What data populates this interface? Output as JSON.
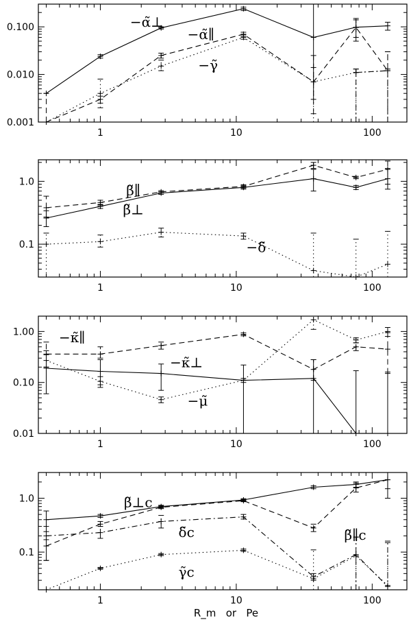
{
  "xlabel": "R_m   or   Pe",
  "chart_data": [
    {
      "type": "line",
      "xscale": "log",
      "yscale": "log",
      "xlim": [
        0.35,
        180
      ],
      "ylim": [
        0.001,
        0.3
      ],
      "xticks": [
        {
          "v": 1,
          "label": "1"
        },
        {
          "v": 10,
          "label": "10"
        },
        {
          "v": 100,
          "label": "100"
        }
      ],
      "yticks": [
        {
          "v": 0.001,
          "label": "0.001"
        },
        {
          "v": 0.01,
          "label": "0.010"
        },
        {
          "v": 0.1,
          "label": "0.100"
        }
      ],
      "series": [
        {
          "name": "−α̃⊥",
          "style": "solid",
          "points": [
            [
              0.4,
              0.004,
              0,
              0
            ],
            [
              1,
              0.024,
              0.022,
              0.026
            ],
            [
              2.8,
              0.095,
              0.09,
              0.1
            ],
            [
              11.3,
              0.24,
              0.22,
              0.26
            ],
            [
              37,
              0.06,
              0.003,
              0.3
            ],
            [
              76,
              0.098,
              0.06,
              0.14
            ],
            [
              130,
              0.105,
              0.085,
              0.125
            ]
          ]
        },
        {
          "name": "−α̃∥",
          "style": "dashed",
          "points": [
            [
              0.4,
              0.0009,
              0.0009,
              0.004
            ],
            [
              1,
              0.003,
              0.0025,
              0.0035
            ],
            [
              2.8,
              0.025,
              0.022,
              0.028
            ],
            [
              11.3,
              0.07,
              0.063,
              0.077
            ],
            [
              37,
              0.007,
              0.0015,
              0.025
            ],
            [
              76,
              0.097,
              0.05,
              0.15
            ],
            [
              130,
              0.012,
              0.0009,
              0.03
            ]
          ]
        },
        {
          "name": "−γ̃",
          "style": "dotted",
          "points": [
            [
              0.4,
              0.0009,
              0,
              0
            ],
            [
              1,
              0.004,
              0.002,
              0.008
            ],
            [
              2.8,
              0.015,
              0.012,
              0.02
            ],
            [
              11.3,
              0.06,
              0.055,
              0.068
            ],
            [
              37,
              0.007,
              0.0009,
              0.014
            ],
            [
              76,
              0.011,
              0.0009,
              0.013
            ],
            [
              130,
              0.012,
              0.0009,
              0.013
            ]
          ]
        },
        {
          "name": "",
          "style": "dashdot",
          "points": [
            [
              76,
              0.011,
              0.0009,
              0.013
            ],
            [
              130,
              0.012,
              0.0009,
              0.03
            ]
          ]
        }
      ],
      "annotations": [
        {
          "label": "−α̃⊥",
          "x": 2.2,
          "y": 0.1
        },
        {
          "label": "−α̃∥",
          "x": 5.5,
          "y": 0.055
        },
        {
          "label": "−γ̃",
          "x": 6.2,
          "y": 0.0125
        }
      ]
    },
    {
      "type": "line",
      "xscale": "log",
      "yscale": "log",
      "xlim": [
        0.35,
        180
      ],
      "ylim": [
        0.03,
        2.2
      ],
      "xticks": [
        {
          "v": 1,
          "label": "1"
        },
        {
          "v": 10,
          "label": "10"
        },
        {
          "v": 100,
          "label": "100"
        }
      ],
      "yticks": [
        {
          "v": 0.1,
          "label": "0.1"
        },
        {
          "v": 1,
          "label": "1.0"
        }
      ],
      "series": [
        {
          "name": "β̃⊥",
          "style": "solid",
          "points": [
            [
              0.4,
              0.26,
              0.19,
              0.34
            ],
            [
              1,
              0.4,
              0.37,
              0.43
            ],
            [
              2.8,
              0.65,
              0.62,
              0.68
            ],
            [
              11.3,
              0.8,
              0.75,
              0.85
            ],
            [
              37,
              1.1,
              0.7,
              1.55
            ],
            [
              76,
              0.8,
              0.74,
              0.86
            ],
            [
              130,
              1.1,
              0.75,
              1.6
            ]
          ]
        },
        {
          "name": "β̃∥",
          "style": "dashed",
          "points": [
            [
              0.4,
              0.38,
              0.27,
              0.58
            ],
            [
              1,
              0.46,
              0.42,
              0.5
            ],
            [
              2.8,
              0.68,
              0.65,
              0.71
            ],
            [
              11.3,
              0.83,
              0.78,
              0.88
            ],
            [
              37,
              1.8,
              1.6,
              2.0
            ],
            [
              76,
              1.15,
              1.1,
              1.2
            ],
            [
              130,
              1.55,
              0.9,
              2.1
            ]
          ]
        },
        {
          "name": "−δ̃",
          "style": "dotted",
          "points": [
            [
              0.4,
              0.1,
              0.03,
              0.15
            ],
            [
              1,
              0.11,
              0.09,
              0.14
            ],
            [
              2.8,
              0.155,
              0.13,
              0.18
            ],
            [
              11.3,
              0.135,
              0.12,
              0.15
            ],
            [
              37,
              0.038,
              0.03,
              0.15
            ],
            [
              76,
              0.03,
              0.03,
              0.12
            ],
            [
              130,
              0.048,
              0.03,
              0.16
            ]
          ]
        }
      ],
      "annotations": [
        {
          "label": "β̃∥",
          "x": 1.75,
          "y": 0.6
        },
        {
          "label": "β̃⊥",
          "x": 1.75,
          "y": 0.3
        },
        {
          "label": "−δ̃",
          "x": 14,
          "y": 0.075
        }
      ]
    },
    {
      "type": "line",
      "xscale": "log",
      "yscale": "log",
      "xlim": [
        0.35,
        180
      ],
      "ylim": [
        0.01,
        2.0
      ],
      "xticks": [
        {
          "v": 1,
          "label": "1"
        },
        {
          "v": 10,
          "label": "10"
        },
        {
          "v": 100,
          "label": "100"
        }
      ],
      "yticks": [
        {
          "v": 0.01,
          "label": "0.01"
        },
        {
          "v": 0.1,
          "label": "0.10"
        },
        {
          "v": 1,
          "label": "1.00"
        }
      ],
      "series": [
        {
          "name": "−κ̃⊥",
          "style": "solid",
          "points": [
            [
              0.4,
              0.19,
              0.06,
              0.42
            ],
            [
              1,
              0.165,
              0.08,
              0.28
            ],
            [
              2.8,
              0.15,
              0.07,
              0.23
            ],
            [
              11.3,
              0.11,
              0.01,
              0.22
            ],
            [
              37,
              0.12,
              0.01,
              0.28
            ],
            [
              76,
              0.01,
              0.01,
              0.17
            ],
            [
              130,
              0.01,
              0.01,
              0.16
            ]
          ]
        },
        {
          "name": "−κ̃∥",
          "style": "dashed",
          "points": [
            [
              0.4,
              0.36,
              0.2,
              0.62
            ],
            [
              1,
              0.36,
              0.3,
              0.5
            ],
            [
              2.8,
              0.53,
              0.45,
              0.62
            ],
            [
              11.3,
              0.88,
              0.82,
              0.94
            ],
            [
              37,
              0.18,
              0.11,
              0.28
            ],
            [
              76,
              0.5,
              0.42,
              0.6
            ],
            [
              130,
              0.45,
              0.15,
              0.95
            ]
          ]
        },
        {
          "name": "−μ̃",
          "style": "dotted",
          "points": [
            [
              0.4,
              0.27,
              0.2,
              0.35
            ],
            [
              1,
              0.105,
              0.09,
              0.13
            ],
            [
              2.8,
              0.046,
              0.04,
              0.052
            ],
            [
              11.3,
              0.11,
              0.1,
              0.12
            ],
            [
              37,
              1.7,
              1.1,
              2.0
            ],
            [
              76,
              0.68,
              0.6,
              0.75
            ],
            [
              130,
              1.0,
              0.8,
              1.2
            ]
          ]
        }
      ],
      "annotations": [
        {
          "label": "−κ̃∥",
          "x": 0.62,
          "y": 0.62
        },
        {
          "label": "−κ̃⊥",
          "x": 4.3,
          "y": 0.2
        },
        {
          "label": "−μ̃",
          "x": 5.2,
          "y": 0.035
        }
      ]
    },
    {
      "type": "line",
      "xscale": "log",
      "yscale": "log",
      "xlim": [
        0.35,
        180
      ],
      "ylim": [
        0.02,
        3.0
      ],
      "xticks": [
        {
          "v": 1,
          "label": "1"
        },
        {
          "v": 10,
          "label": "10"
        },
        {
          "v": 100,
          "label": "100"
        }
      ],
      "yticks": [
        {
          "v": 0.1,
          "label": "0.1"
        },
        {
          "v": 1,
          "label": "1.0"
        }
      ],
      "series": [
        {
          "name": "β̃⊥c",
          "style": "solid",
          "points": [
            [
              0.4,
              0.4,
              0.07,
              0.58
            ],
            [
              1,
              0.47,
              0.44,
              0.5
            ],
            [
              2.8,
              0.7,
              0.66,
              0.74
            ],
            [
              11.3,
              0.93,
              0.88,
              0.98
            ],
            [
              37,
              1.6,
              1.5,
              1.7
            ],
            [
              76,
              1.8,
              1.6,
              2.0
            ],
            [
              130,
              2.2,
              1.0,
              3.0
            ]
          ]
        },
        {
          "name": "β̃∥c",
          "style": "dashed",
          "points": [
            [
              0.4,
              0.13,
              0.07,
              0.3
            ],
            [
              1,
              0.33,
              0.3,
              0.37
            ],
            [
              2.8,
              0.68,
              0.64,
              0.72
            ],
            [
              11.3,
              0.9,
              0.86,
              0.95
            ],
            [
              37,
              0.28,
              0.24,
              0.33
            ],
            [
              76,
              1.55,
              1.3,
              1.9
            ],
            [
              130,
              2.2,
              1.5,
              3.0
            ]
          ]
        },
        {
          "name": "δ̃c",
          "style": "dashdot",
          "points": [
            [
              0.4,
              0.2,
              0.17,
              0.24
            ],
            [
              1,
              0.23,
              0.18,
              0.3
            ],
            [
              2.8,
              0.37,
              0.28,
              0.48
            ],
            [
              11.3,
              0.45,
              0.41,
              0.5
            ],
            [
              37,
              0.035,
              0.03,
              0.04
            ],
            [
              76,
              0.09,
              0.02,
              0.19
            ],
            [
              130,
              0.023,
              0.02,
              0.16
            ]
          ]
        },
        {
          "name": "γ̃c",
          "style": "dotted",
          "points": [
            [
              0.4,
              0.018,
              0,
              0
            ],
            [
              1,
              0.05,
              0.048,
              0.052
            ],
            [
              2.8,
              0.09,
              0.086,
              0.094
            ],
            [
              11.3,
              0.108,
              0.103,
              0.114
            ],
            [
              37,
              0.032,
              0.02,
              0.11
            ],
            [
              76,
              0.085,
              0.02,
              0.19
            ],
            [
              130,
              0.024,
              0.02,
              0.15
            ]
          ]
        }
      ],
      "annotations": [
        {
          "label": "β̃⊥c",
          "x": 1.9,
          "y": 0.68
        },
        {
          "label": "δ̃c",
          "x": 4.3,
          "y": 0.19
        },
        {
          "label": "γ̃c",
          "x": 4.3,
          "y": 0.035
        },
        {
          "label": "β̃∥c",
          "x": 75,
          "y": 0.17
        }
      ]
    }
  ]
}
